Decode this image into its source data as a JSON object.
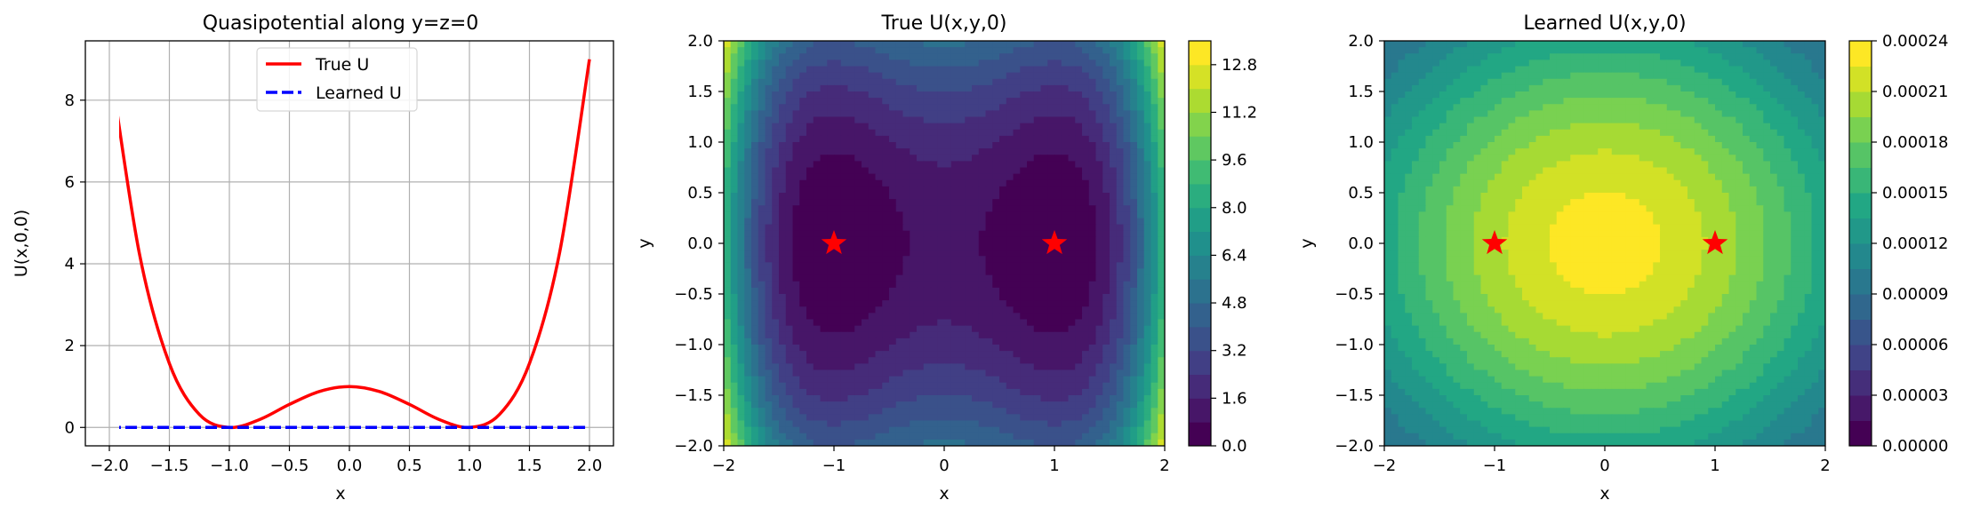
{
  "chart_data": [
    {
      "type": "line",
      "title": "Quasipotential along y=z=0",
      "xlabel": "x",
      "ylabel": "U(x,0,0)",
      "xlim": [
        -2.2,
        2.2
      ],
      "ylim": [
        -0.45,
        9.45
      ],
      "xticks": [
        -2.0,
        -1.5,
        -1.0,
        -0.5,
        0.0,
        0.5,
        1.0,
        1.5,
        2.0
      ],
      "yticks": [
        0,
        2,
        4,
        6,
        8
      ],
      "grid": true,
      "legend": "upper-center",
      "x": [
        -2.0,
        -1.75,
        -1.5,
        -1.25,
        -1.0,
        -0.75,
        -0.5,
        -0.25,
        0.0,
        0.25,
        0.5,
        0.75,
        1.0,
        1.25,
        1.5,
        1.75,
        2.0
      ],
      "series": [
        {
          "name": "True U",
          "color": "#ff0000",
          "style": "solid",
          "values": [
            9.0,
            4.254,
            1.563,
            0.316,
            0.0,
            0.191,
            0.563,
            0.879,
            1.0,
            0.879,
            0.563,
            0.191,
            0.0,
            0.316,
            1.563,
            4.254,
            9.0
          ]
        },
        {
          "name": "Learned U",
          "color": "#0000ff",
          "style": "dashed",
          "values": [
            0.0,
            0.0,
            0.0,
            0.0,
            0.0,
            0.0,
            0.0,
            0.0,
            0.0,
            0.0,
            0.0,
            0.0,
            0.0,
            0.0,
            0.0,
            0.0,
            0.0
          ]
        }
      ]
    },
    {
      "type": "heatmap",
      "title": "True U(x,y,0)",
      "xlabel": "x",
      "ylabel": "y",
      "xlim": [
        -2,
        2
      ],
      "ylim": [
        -2,
        2
      ],
      "xticks": [
        -2,
        -1,
        0,
        1,
        2
      ],
      "yticks": [
        -2.0,
        -1.5,
        -1.0,
        -0.5,
        0.0,
        0.5,
        1.0,
        1.5,
        2.0
      ],
      "function": "(x^2-1)^2 + y^2",
      "levels": [
        0.0,
        0.8,
        1.6,
        2.4,
        3.2,
        4.0,
        4.8,
        5.6,
        6.4,
        7.2,
        8.0,
        8.8,
        9.6,
        10.4,
        11.2,
        12.0,
        12.8,
        13.6
      ],
      "colorbar_ticks": [
        "0.0",
        "1.6",
        "3.2",
        "4.8",
        "6.4",
        "8.0",
        "9.6",
        "11.2",
        "12.8"
      ],
      "markers": [
        {
          "x": -1,
          "y": 0
        },
        {
          "x": 1,
          "y": 0
        }
      ],
      "marker_color": "#ff0000",
      "colormap": "viridis"
    },
    {
      "type": "heatmap",
      "title": "Learned U(x,y,0)",
      "xlabel": "x",
      "ylabel": "y",
      "xlim": [
        -2,
        2
      ],
      "ylim": [
        -2,
        2
      ],
      "xticks": [
        -2,
        -1,
        0,
        1,
        2
      ],
      "yticks": [
        -2.0,
        -1.5,
        -1.0,
        -0.5,
        0.0,
        0.5,
        1.0,
        1.5,
        2.0
      ],
      "function": "0.000232*exp(-(x^2+y^2)/8.3)",
      "levels": [
        0.0,
        1.5e-05,
        3e-05,
        4.5e-05,
        6e-05,
        7.5e-05,
        9e-05,
        0.000105,
        0.00012,
        0.000135,
        0.00015,
        0.000165,
        0.00018,
        0.000195,
        0.00021,
        0.000225,
        0.00024
      ],
      "colorbar_ticks": [
        "0.00000",
        "0.00003",
        "0.00006",
        "0.00009",
        "0.00012",
        "0.00015",
        "0.00018",
        "0.00021",
        "0.00024"
      ],
      "markers": [
        {
          "x": -1,
          "y": 0
        },
        {
          "x": 1,
          "y": 0
        }
      ],
      "marker_color": "#ff0000",
      "colormap": "viridis"
    }
  ]
}
